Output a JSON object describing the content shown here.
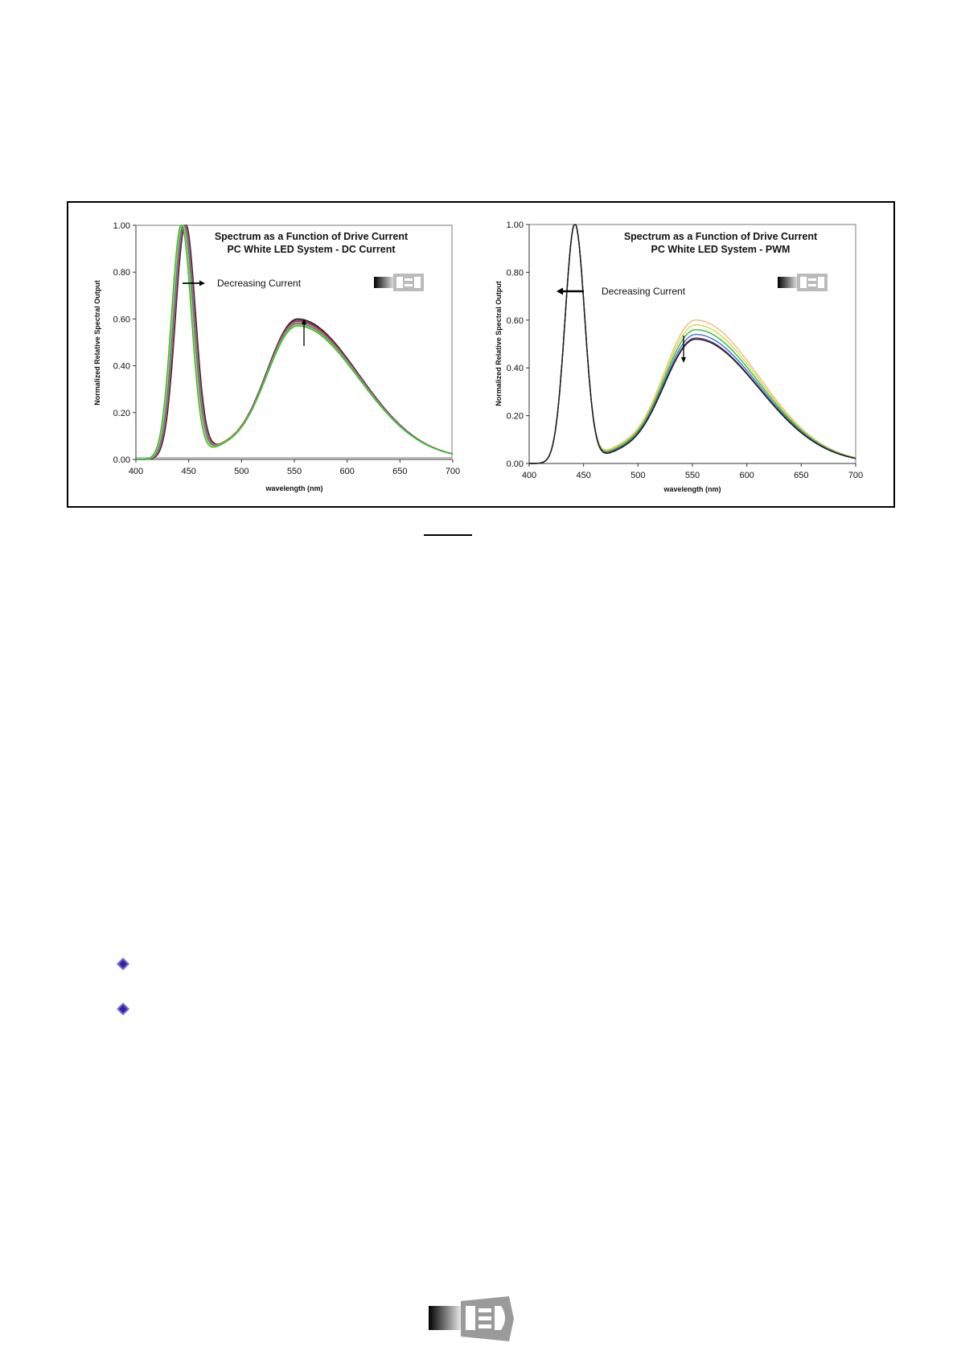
{
  "figure": {
    "charts": [
      {
        "id": "dc",
        "title_line1": "Spectrum as a Function of Drive Current",
        "title_line2": "PC White LED System - DC Current",
        "ylabel": "Normalized Relative Spectral Output",
        "xlabel": "wavelength (nm)",
        "annotation": "Decreasing Current",
        "xticks": [
          "400",
          "450",
          "500",
          "550",
          "600",
          "650",
          "700"
        ],
        "yticks": [
          "0.00",
          "0.20",
          "0.40",
          "0.60",
          "0.80",
          "1.00"
        ]
      },
      {
        "id": "pwm",
        "title_line1": "Spectrum as a Function of Drive Current",
        "title_line2": "PC White LED System - PWM",
        "ylabel": "Normalized Relative Spectral Output",
        "xlabel": "wavelength (nm)",
        "annotation": "Decreasing Current",
        "xticks": [
          "400",
          "450",
          "500",
          "550",
          "600",
          "650",
          "700"
        ],
        "yticks": [
          "0.00",
          "0.20",
          "0.40",
          "0.60",
          "0.80",
          "1.00"
        ]
      }
    ]
  },
  "chart_data": [
    {
      "type": "line",
      "title": "Spectrum as a Function of Drive Current / PC White LED System - DC Current",
      "xlabel": "wavelength (nm)",
      "ylabel": "Normalized Relative Spectral Output",
      "xlim": [
        400,
        700
      ],
      "ylim": [
        0,
        1.0
      ],
      "grid": false,
      "legend": "none",
      "annotation": "Decreasing Current",
      "series": [
        {
          "color": "#1a1a1a",
          "blue_peak_x": 447,
          "blue_peak_width": 9.5,
          "min_y": 0.1,
          "phosphor_peak_x": 553,
          "phosphor_peak_y": 0.6,
          "end_y": 0.05
        },
        {
          "color": "#8a2a2a",
          "blue_peak_x": 446.5,
          "blue_peak_width": 9.5,
          "min_y": 0.1,
          "phosphor_peak_x": 553,
          "phosphor_peak_y": 0.595,
          "end_y": 0.05
        },
        {
          "color": "#7a3d8f",
          "blue_peak_x": 446,
          "blue_peak_width": 9.5,
          "min_y": 0.1,
          "phosphor_peak_x": 553,
          "phosphor_peak_y": 0.59,
          "end_y": 0.05
        },
        {
          "color": "#e08a3a",
          "blue_peak_x": 445.5,
          "blue_peak_width": 9.5,
          "min_y": 0.1,
          "phosphor_peak_x": 553,
          "phosphor_peak_y": 0.585,
          "end_y": 0.05
        },
        {
          "color": "#3a6fd8",
          "blue_peak_x": 445,
          "blue_peak_width": 9.5,
          "min_y": 0.095,
          "phosphor_peak_x": 553,
          "phosphor_peak_y": 0.58,
          "end_y": 0.05
        },
        {
          "color": "#b8c83a",
          "blue_peak_x": 444,
          "blue_peak_width": 9.5,
          "min_y": 0.095,
          "phosphor_peak_x": 553,
          "phosphor_peak_y": 0.575,
          "end_y": 0.05
        },
        {
          "color": "#2ec02e",
          "blue_peak_x": 443,
          "blue_peak_width": 9.5,
          "min_y": 0.09,
          "phosphor_peak_x": 553,
          "phosphor_peak_y": 0.57,
          "end_y": 0.05
        }
      ]
    },
    {
      "type": "line",
      "title": "Spectrum as a Function of Drive Current / PC White LED System - PWM",
      "xlabel": "wavelength (nm)",
      "ylabel": "Normalized Relative Spectral Output",
      "xlim": [
        400,
        700
      ],
      "ylim": [
        0,
        1.0
      ],
      "grid": false,
      "legend": "none",
      "annotation": "Decreasing Current",
      "series": [
        {
          "color": "#f2b880",
          "blue_peak_x": 442,
          "blue_peak_width": 9,
          "min_y": 0.12,
          "phosphor_peak_x": 553,
          "phosphor_peak_y": 0.6,
          "end_y": 0.06
        },
        {
          "color": "#d8d840",
          "blue_peak_x": 442,
          "blue_peak_width": 9,
          "min_y": 0.11,
          "phosphor_peak_x": 553,
          "phosphor_peak_y": 0.58,
          "end_y": 0.055
        },
        {
          "color": "#2ec02e",
          "blue_peak_x": 442,
          "blue_peak_width": 9,
          "min_y": 0.1,
          "phosphor_peak_x": 553,
          "phosphor_peak_y": 0.56,
          "end_y": 0.05
        },
        {
          "color": "#3a6fd8",
          "blue_peak_x": 442,
          "blue_peak_width": 9,
          "min_y": 0.09,
          "phosphor_peak_x": 553,
          "phosphor_peak_y": 0.54,
          "end_y": 0.05
        },
        {
          "color": "#7a3d8f",
          "blue_peak_x": 442,
          "blue_peak_width": 9,
          "min_y": 0.085,
          "phosphor_peak_x": 553,
          "phosphor_peak_y": 0.525,
          "end_y": 0.045
        },
        {
          "color": "#1a1a1a",
          "blue_peak_x": 442,
          "blue_peak_width": 9,
          "min_y": 0.08,
          "phosphor_peak_x": 553,
          "phosphor_peak_y": 0.52,
          "end_y": 0.045
        }
      ]
    }
  ]
}
